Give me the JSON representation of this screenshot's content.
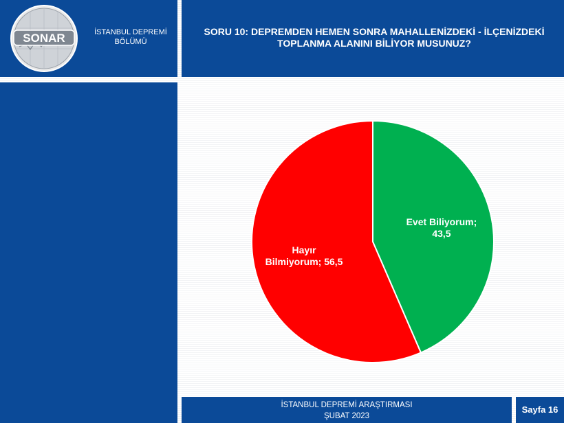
{
  "header": {
    "department": "İSTANBUL DEPREMİ\nBÖLÜMÜ",
    "logo_text": "SONAR",
    "question": "SORU 10: DEPREMDEN HEMEN SONRA MAHALLENİZDEKİ - İLÇENİZDEKİ\nTOPLANMA ALANINI BİLİYOR MUSUNUZ?"
  },
  "footer": {
    "survey": "İSTANBUL DEPREMİ ARAŞTIRMASI\nŞUBAT 2023",
    "page": "Sayfa 16"
  },
  "colors": {
    "brand_blue": "#0b4a98",
    "evet": "#00b050",
    "hayir": "#ff0000"
  },
  "chart_data": {
    "type": "pie",
    "title": "",
    "slices": [
      {
        "label_lines": [
          "Evet Biliyorum;",
          "43,5"
        ],
        "value": 43.5,
        "color": "#00b050"
      },
      {
        "label_lines": [
          "Hayır",
          "Bilmiyorum;  56,5"
        ],
        "value": 56.5,
        "color": "#ff0000"
      }
    ]
  }
}
